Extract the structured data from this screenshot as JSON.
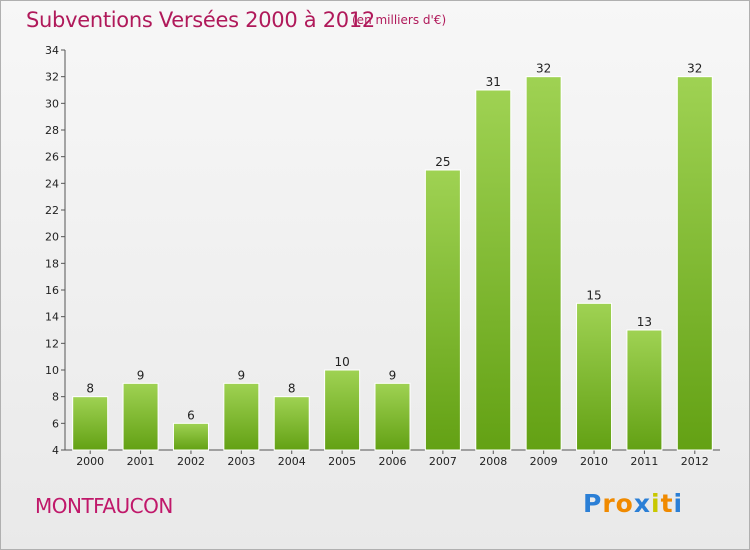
{
  "header": {
    "title": "Subventions Versées 2000 à 2012",
    "subtitle": "(en milliers d'€)"
  },
  "footer": {
    "commune": "MONTFAUCON",
    "logo_letters": [
      "P",
      "r",
      "o",
      "x",
      "i",
      "t",
      "i"
    ],
    "logo_colors": [
      "#2b7fd6",
      "#f08a00",
      "#f08a00",
      "#2b7fd6",
      "#c8c800",
      "#f08a00",
      "#2b7fd6"
    ]
  },
  "colors": {
    "bar_top": "#9fd253",
    "bar_bottom": "#63a114",
    "bar_border": "#ffffff",
    "text": "#b0195a"
  },
  "chart_data": {
    "type": "bar",
    "title": "Subventions Versées 2000 à 2012",
    "subtitle": "(en milliers d'€)",
    "categories": [
      "2000",
      "2001",
      "2002",
      "2003",
      "2004",
      "2005",
      "2006",
      "2007",
      "2008",
      "2009",
      "2010",
      "2011",
      "2012"
    ],
    "values": [
      8,
      9,
      6,
      9,
      8,
      10,
      9,
      25,
      31,
      32,
      15,
      13,
      32
    ],
    "ylim": [
      4,
      34
    ],
    "yticks": [
      4,
      6,
      8,
      10,
      12,
      14,
      16,
      18,
      20,
      22,
      24,
      26,
      28,
      30,
      32,
      34
    ],
    "grid": false,
    "legend": "none"
  }
}
